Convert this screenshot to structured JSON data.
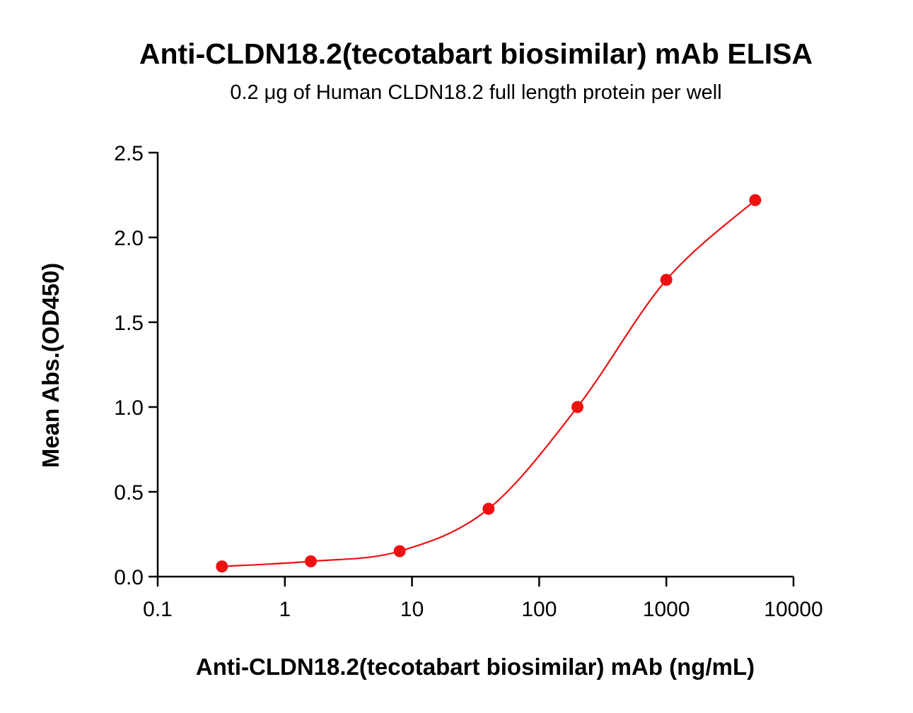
{
  "chart_data": {
    "type": "scatter",
    "title": "Anti-CLDN18.2(tecotabart biosimilar) mAb ELISA",
    "subtitle": "0.2 μg of Human CLDN18.2 full length protein per well",
    "xlabel": "Anti-CLDN18.2(tecotabart biosimilar) mAb (ng/mL)",
    "ylabel": "Mean Abs.(OD450)",
    "x_scale": "log",
    "xlim": [
      0.1,
      10000
    ],
    "ylim": [
      0,
      2.5
    ],
    "x_ticks": [
      0.1,
      1,
      10,
      100,
      1000,
      10000
    ],
    "x_tick_labels": [
      "0.1",
      "1",
      "10",
      "100",
      "1000",
      "10000"
    ],
    "y_ticks": [
      0,
      0.5,
      1.0,
      1.5,
      2.0,
      2.5
    ],
    "y_tick_labels": [
      "0.0",
      "0.5",
      "1.0",
      "1.5",
      "2.0",
      "2.5"
    ],
    "grid": false,
    "series": [
      {
        "color": "#ee1111",
        "points": [
          {
            "x": 0.32,
            "y": 0.06
          },
          {
            "x": 1.6,
            "y": 0.09
          },
          {
            "x": 8,
            "y": 0.15
          },
          {
            "x": 40,
            "y": 0.4
          },
          {
            "x": 200,
            "y": 1.0
          },
          {
            "x": 1000,
            "y": 1.75
          },
          {
            "x": 5000,
            "y": 2.22
          }
        ],
        "fit": "4PL curve"
      }
    ]
  }
}
